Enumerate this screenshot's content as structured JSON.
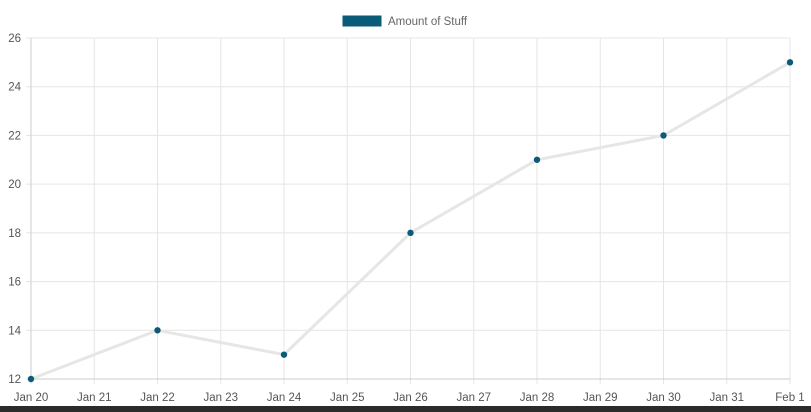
{
  "chart_data": {
    "type": "line",
    "title": "",
    "xlabel": "",
    "ylabel": "",
    "x": [
      "Jan 20",
      "Jan 22",
      "Jan 24",
      "Jan 26",
      "Jan 28",
      "Jan 30",
      "Feb 1"
    ],
    "series": [
      {
        "name": "Amount of Stuff",
        "values": [
          12,
          14,
          13,
          18,
          21,
          22,
          25
        ],
        "point_color": "#0a5a78",
        "line_color": "#e6e6e6",
        "legend_color": "#0a5a78"
      }
    ],
    "x_tick_labels": [
      "Jan 20",
      "Jan 21",
      "Jan 22",
      "Jan 23",
      "Jan 24",
      "Jan 25",
      "Jan 26",
      "Jan 27",
      "Jan 28",
      "Jan 29",
      "Jan 30",
      "Jan 31",
      "Feb 1"
    ],
    "y_tick_labels": [
      "26",
      "24",
      "22",
      "20",
      "18",
      "16",
      "14",
      "12"
    ],
    "ylim": [
      12,
      26
    ],
    "grid": true,
    "legend_position": "top-center",
    "colors": {
      "grid": "#e5e5e5",
      "axis": "#cccccc",
      "text": "#555555"
    }
  }
}
